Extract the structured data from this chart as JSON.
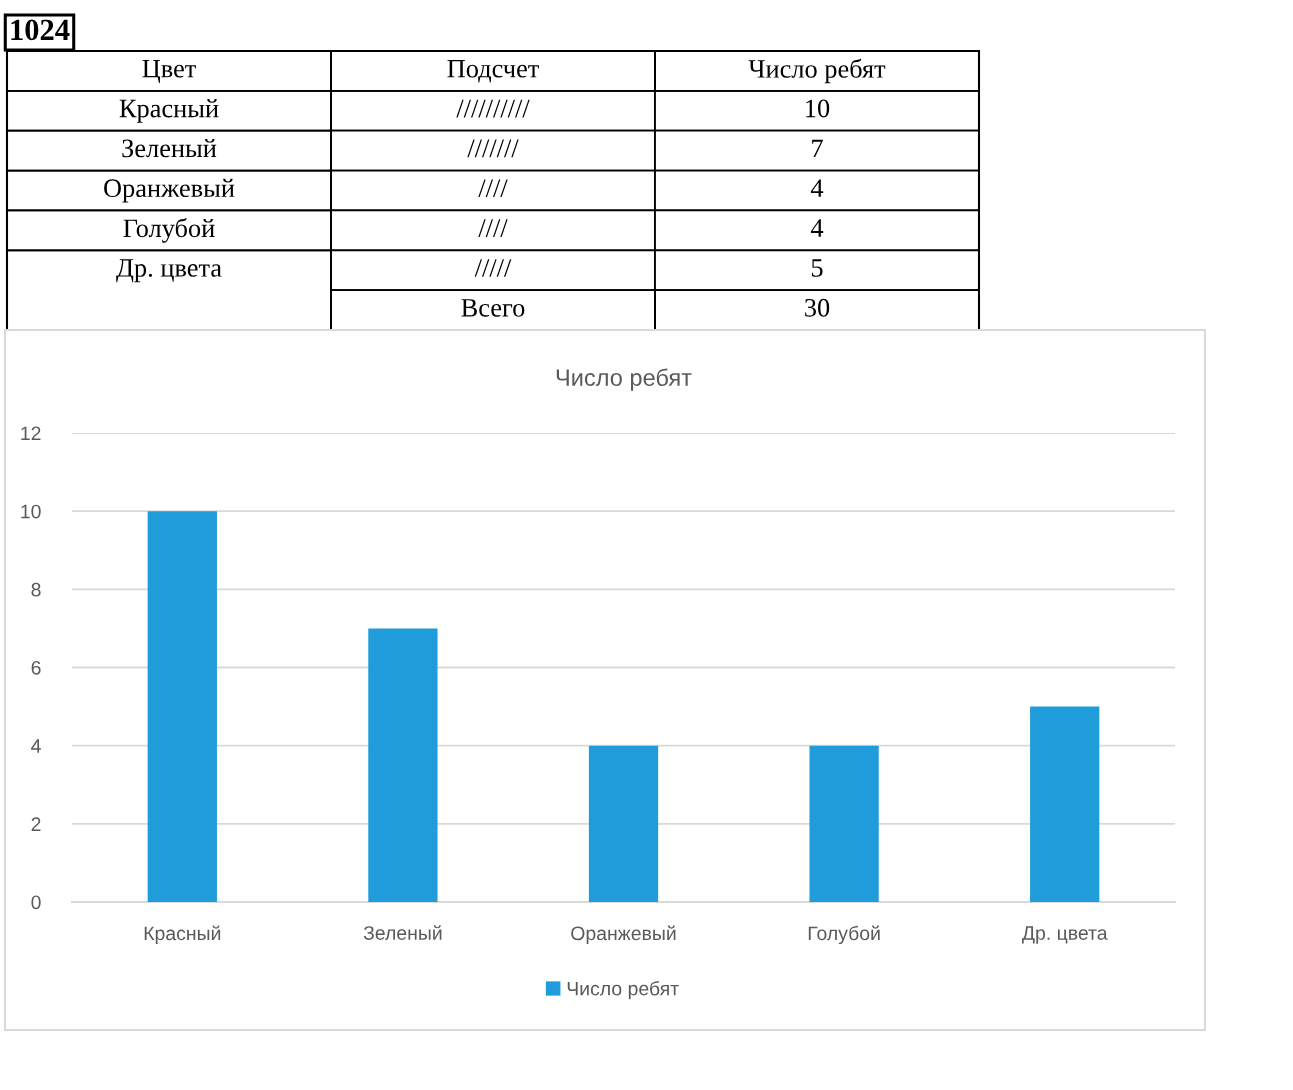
{
  "chart_data": [
    {
      "type": "heatmap",
      "title": "1024",
      "ylabel": "Цвет",
      "categories": [
        "Подсчет",
        "Число ребят"
      ],
      "y_categories": [
        "Красный",
        "Зеленый",
        "Оранжевый",
        "Голубой",
        "Др. цвета"
      ],
      "cells": [
        [
          null,
          null
        ],
        [
          null,
          null
        ],
        [
          null,
          null
        ],
        [
          null,
          null
        ],
        [
          null,
          null
        ]
      ],
      "cell_labels": [
        [
          "//////////",
          "10"
        ],
        [
          "///////",
          "7"
        ],
        [
          "////",
          "4"
        ],
        [
          "////",
          "4"
        ],
        [
          "/////",
          "5"
        ]
      ],
      "annotations": [
        "Всего",
        "30"
      ]
    },
    {
      "type": "bar",
      "title": "Число ребят",
      "categories": [
        "Красный",
        "Зеленый",
        "Оранжевый",
        "Голубой",
        "Др. цвета"
      ],
      "series": [
        {
          "name": "Число ребят",
          "color": "#1f9cd9",
          "values": [
            10,
            7,
            4,
            4,
            5
          ]
        }
      ],
      "ylim": [
        0,
        12
      ],
      "yticks": [
        0,
        2,
        4,
        6,
        8,
        10,
        12
      ],
      "grid": "y",
      "legend": "bottom"
    }
  ]
}
